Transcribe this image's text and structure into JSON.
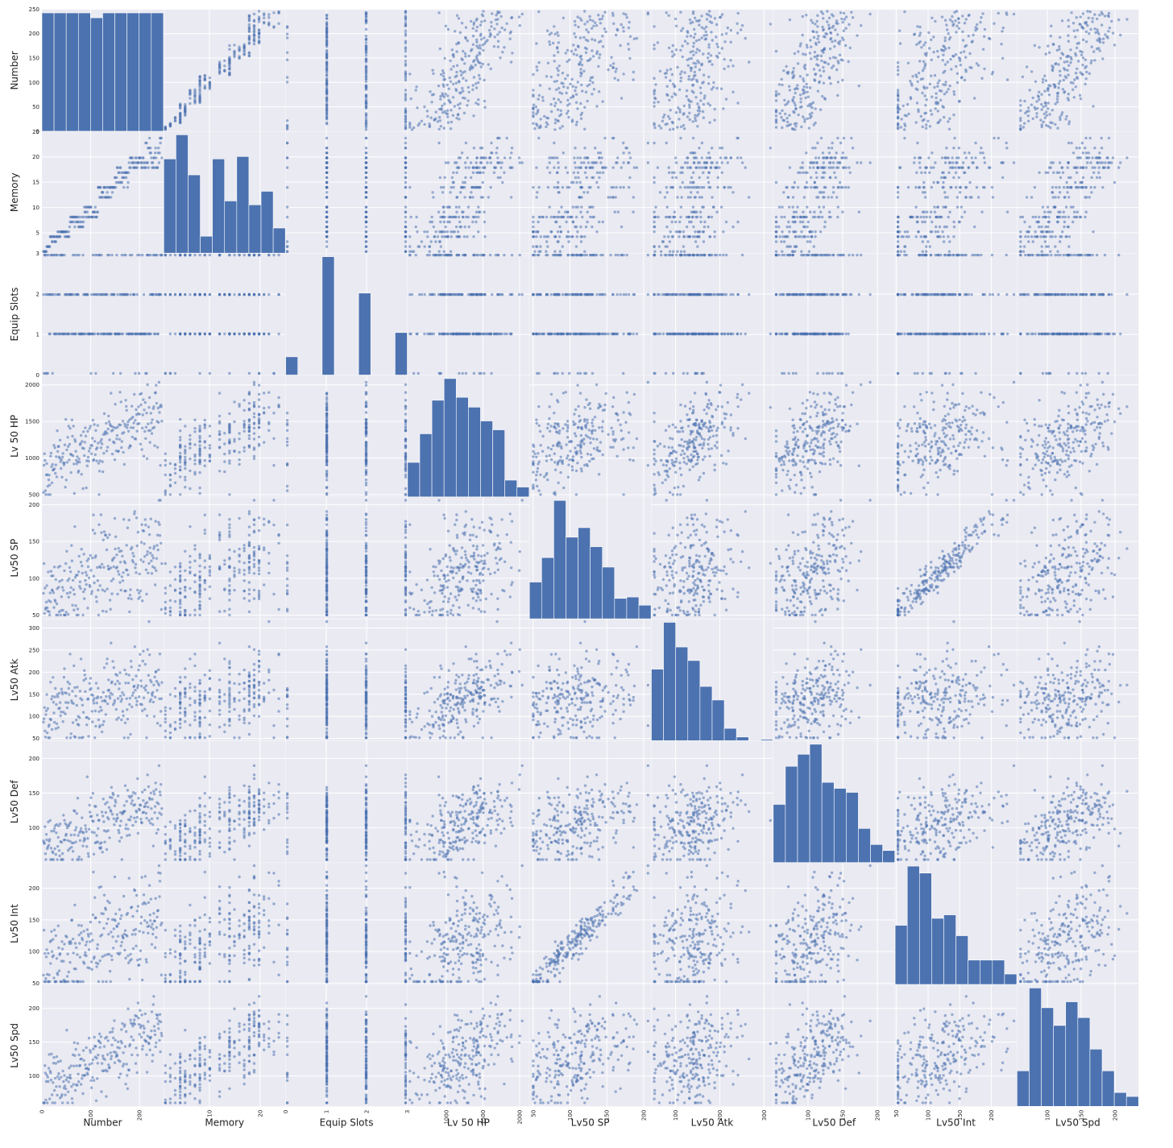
{
  "colors": {
    "panel_bg": "#EAEAF2",
    "grid": "#FFFFFF",
    "marker": "#4C72B0",
    "bar": "#4C72B0"
  },
  "chart_data": {
    "type": "scatter_matrix",
    "variables": [
      "Number",
      "Memory",
      "Equip Slots",
      "Lv 50 HP",
      "Lv50 SP",
      "Lv50 Atk",
      "Lv50 Def",
      "Lv50 Int",
      "Lv50 Spd"
    ],
    "ranges": {
      "Number": [
        0,
        249
      ],
      "Memory": [
        1,
        25
      ],
      "Equip Slots": [
        0,
        3
      ],
      "Lv 50 HP": [
        470,
        2130
      ],
      "Lv50 SP": [
        45,
        210
      ],
      "Lv50 Atk": [
        45,
        320
      ],
      "Lv50 Def": [
        50,
        225
      ],
      "Lv50 Int": [
        48,
        240
      ],
      "Lv50 Spd": [
        55,
        235
      ]
    },
    "y_ticks": {
      "Number": [
        0,
        50,
        100,
        150,
        200,
        250
      ],
      "Memory": [
        5,
        10,
        15,
        20,
        25
      ],
      "Equip Slots": [
        0,
        1,
        2,
        3
      ],
      "Lv 50 HP": [
        500,
        1000,
        1500,
        2000
      ],
      "Lv50 SP": [
        50,
        100,
        150,
        200
      ],
      "Lv50 Atk": [
        50,
        100,
        150,
        200,
        250,
        300
      ],
      "Lv50 Def": [
        100,
        150,
        200
      ],
      "Lv50 Int": [
        50,
        100,
        150,
        200
      ],
      "Lv50 Spd": [
        100,
        150,
        200
      ]
    },
    "x_ticks": {
      "Number": [
        0,
        100,
        200
      ],
      "Memory": [
        10,
        20
      ],
      "Equip Slots": [
        0,
        1,
        2,
        3
      ],
      "Lv 50 HP": [
        1000,
        1500,
        2000
      ],
      "Lv50 SP": [
        50,
        100,
        150,
        200
      ],
      "Lv50 Atk": [
        100,
        200,
        300
      ],
      "Lv50 Def": [
        100,
        150,
        200
      ],
      "Lv50 Int": [
        50,
        100,
        150,
        200
      ],
      "Lv50 Spd": [
        100,
        150,
        200
      ]
    },
    "histograms": {
      "Number": [
        242,
        242,
        242,
        242,
        232,
        242,
        242,
        242,
        242,
        242
      ],
      "Memory": [
        19.5,
        24.5,
        16.2,
        3.5,
        19.5,
        10.8,
        20.0,
        10.0,
        12.8,
        5.2
      ],
      "Equip Slots": [
        6,
        0,
        0,
        39,
        0,
        0,
        27,
        0,
        0,
        14
      ],
      "Lv 50 HP": [
        35,
        64,
        98,
        120,
        101,
        91,
        77,
        68,
        17,
        10
      ],
      "Lv50 SP": [
        27,
        45,
        87,
        60,
        67,
        53,
        38,
        15,
        16,
        10
      ],
      "Lv50 Atk": [
        58,
        96,
        76,
        65,
        44,
        33,
        10,
        3,
        0,
        1
      ],
      "Lv50 Def": [
        29,
        48,
        54,
        59,
        40,
        37,
        35,
        17,
        9,
        6
      ],
      "Lv50 Int": [
        17,
        34,
        32,
        19,
        20,
        14,
        7,
        7,
        7,
        3
      ],
      "Lv50 Spd": [
        18,
        60,
        50,
        41,
        53,
        45,
        29,
        18,
        7,
        5
      ]
    }
  }
}
